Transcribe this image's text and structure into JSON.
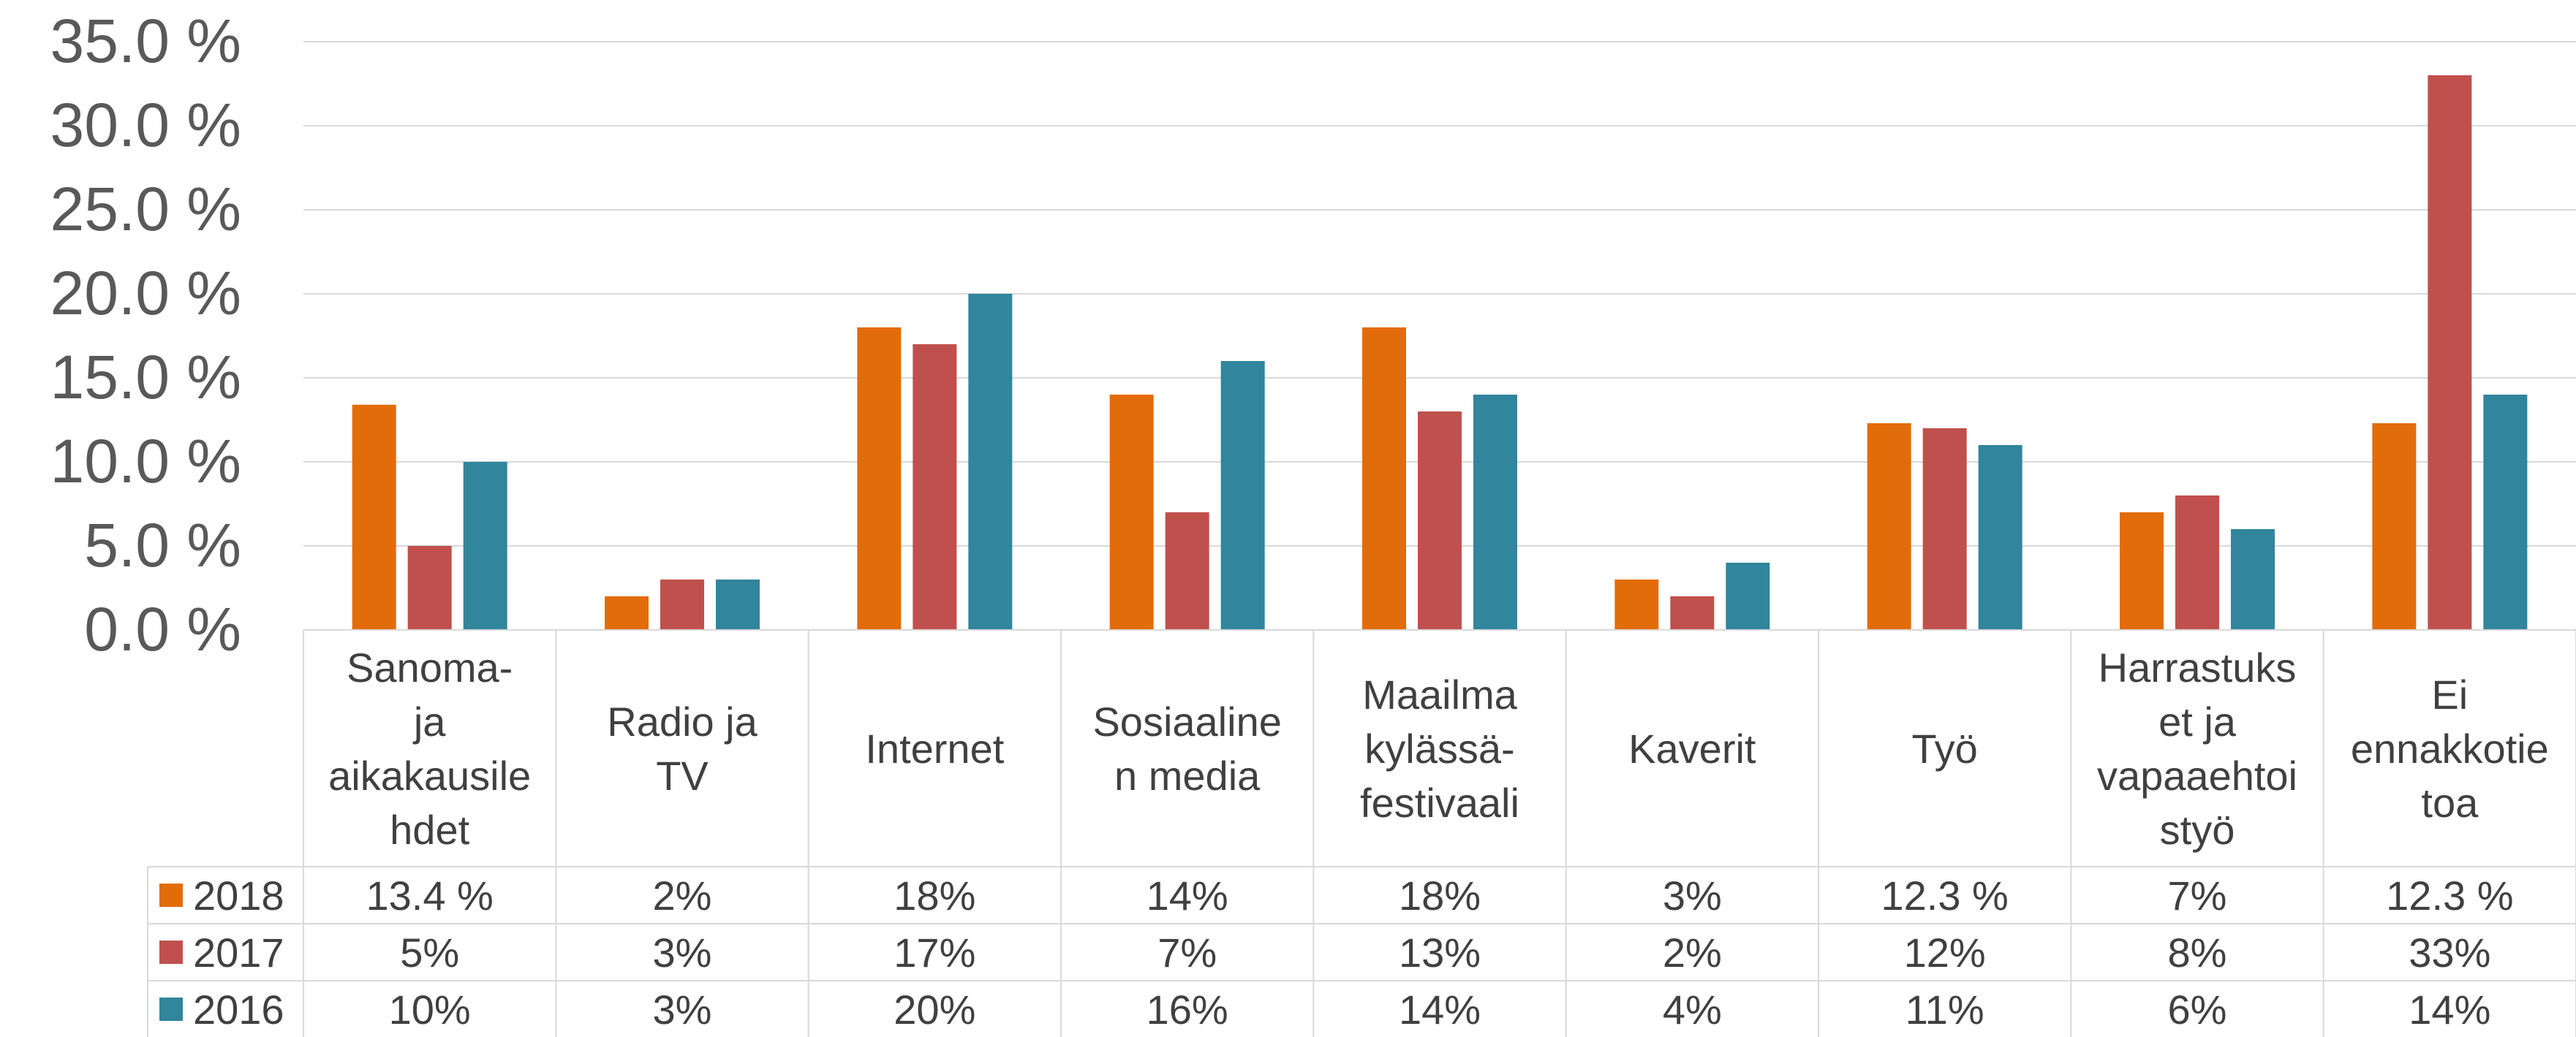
{
  "chart_data": {
    "type": "bar",
    "categories": [
      [
        "Sanoma-",
        "ja",
        "aikakausile",
        "hdet"
      ],
      [
        "Radio ja",
        "TV"
      ],
      [
        "Internet"
      ],
      [
        "Sosiaaline",
        "n media"
      ],
      [
        "Maailma",
        "kylässä-",
        "festivaali"
      ],
      [
        "Kaverit"
      ],
      [
        "Työ"
      ],
      [
        "Harrastuks",
        "et ja",
        "vapaaehtoi",
        "styö"
      ],
      [
        "Ei",
        "ennakkotie",
        "toa"
      ]
    ],
    "series": [
      {
        "name": "2018",
        "color": "#E36C0A",
        "values": [
          13.4,
          2,
          18,
          14,
          18,
          3,
          12.3,
          7,
          12.3
        ],
        "labels": [
          "13.4 %",
          "2%",
          "18%",
          "14%",
          "18%",
          "3%",
          "12.3 %",
          "7%",
          "12.3 %"
        ]
      },
      {
        "name": "2017",
        "color": "#C0504D",
        "values": [
          5,
          3,
          17,
          7,
          13,
          2,
          12,
          8,
          33
        ],
        "labels": [
          "5%",
          "3%",
          "17%",
          "7%",
          "13%",
          "2%",
          "12%",
          "8%",
          "33%"
        ]
      },
      {
        "name": "2016",
        "color": "#31859C",
        "values": [
          10,
          3,
          20,
          16,
          14,
          4,
          11,
          6,
          14
        ],
        "labels": [
          "10%",
          "3%",
          "20%",
          "16%",
          "14%",
          "4%",
          "11%",
          "6%",
          "14%"
        ]
      }
    ],
    "y_ticks": [
      "0.0 %",
      "5.0 %",
      "10.0 %",
      "15.0 %",
      "20.0 %",
      "25.0 %",
      "30.0 %",
      "35.0 %"
    ],
    "ylim": [
      0,
      35
    ],
    "grid": true,
    "legend": "data-table"
  }
}
